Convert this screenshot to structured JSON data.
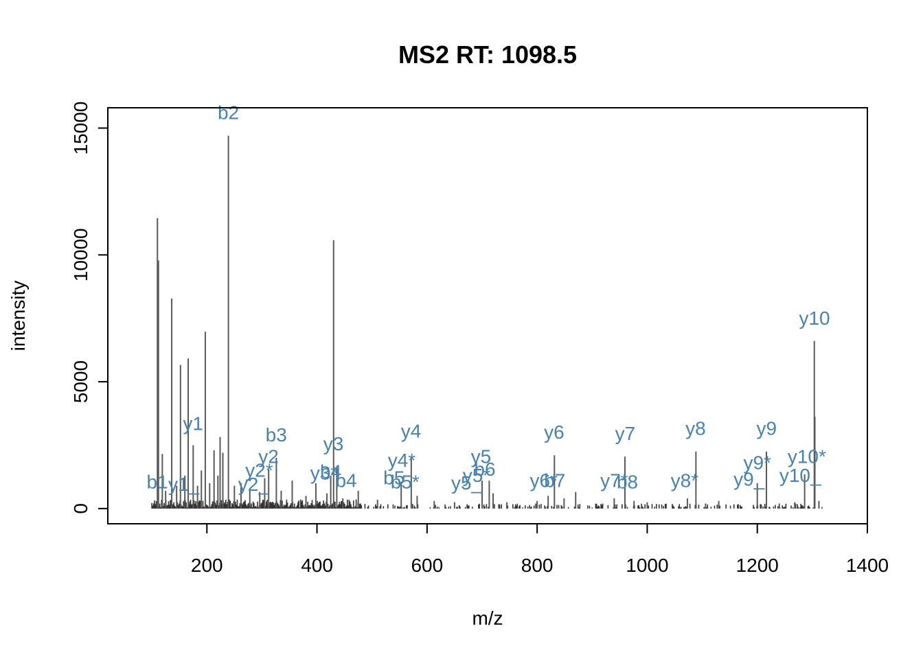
{
  "chart_data": {
    "type": "bar",
    "title": "MS2 RT: 1098.5",
    "xlabel": "m/z",
    "ylabel": "intensity",
    "xlim": [
      20,
      1400
    ],
    "ylim": [
      -600,
      15800
    ],
    "x_ticks": [
      200,
      400,
      600,
      800,
      1000,
      1200,
      1400
    ],
    "y_ticks": [
      0,
      5000,
      10000,
      15000
    ],
    "colors": {
      "peaks": "#595959",
      "labels": "#4682b4",
      "axis": "#000000"
    },
    "peaks": [
      {
        "mz": 110.1,
        "intensity": 11450
      },
      {
        "mz": 112.0,
        "intensity": 9780
      },
      {
        "mz": 119.0,
        "intensity": 2150
      },
      {
        "mz": 125.0,
        "intensity": 700
      },
      {
        "mz": 136.1,
        "intensity": 8280
      },
      {
        "mz": 145.0,
        "intensity": 900
      },
      {
        "mz": 152.0,
        "intensity": 5660
      },
      {
        "mz": 160.0,
        "intensity": 1300
      },
      {
        "mz": 166.0,
        "intensity": 5920
      },
      {
        "mz": 175.1,
        "intensity": 2500
      },
      {
        "mz": 183.0,
        "intensity": 900
      },
      {
        "mz": 190.0,
        "intensity": 1500
      },
      {
        "mz": 197.1,
        "intensity": 6970
      },
      {
        "mz": 205.0,
        "intensity": 1000
      },
      {
        "mz": 213.0,
        "intensity": 2300
      },
      {
        "mz": 220.0,
        "intensity": 1300
      },
      {
        "mz": 224.0,
        "intensity": 2820
      },
      {
        "mz": 229.0,
        "intensity": 2200
      },
      {
        "mz": 239.1,
        "intensity": 14700
      },
      {
        "mz": 250.0,
        "intensity": 900
      },
      {
        "mz": 262.0,
        "intensity": 1000
      },
      {
        "mz": 278.0,
        "intensity": 700
      },
      {
        "mz": 296.0,
        "intensity": 650
      },
      {
        "mz": 305.0,
        "intensity": 1200
      },
      {
        "mz": 312.2,
        "intensity": 1550
      },
      {
        "mz": 326.2,
        "intensity": 2000
      },
      {
        "mz": 335.0,
        "intensity": 700
      },
      {
        "mz": 355.0,
        "intensity": 1100
      },
      {
        "mz": 380.0,
        "intensity": 500
      },
      {
        "mz": 398.0,
        "intensity": 1000
      },
      {
        "mz": 418.0,
        "intensity": 600
      },
      {
        "mz": 425.0,
        "intensity": 1300
      },
      {
        "mz": 430.2,
        "intensity": 10580
      },
      {
        "mz": 436.0,
        "intensity": 1600
      },
      {
        "mz": 447.0,
        "intensity": 400
      },
      {
        "mz": 475.0,
        "intensity": 700
      },
      {
        "mz": 510.0,
        "intensity": 350
      },
      {
        "mz": 553.0,
        "intensity": 1050
      },
      {
        "mz": 571.3,
        "intensity": 2040
      },
      {
        "mz": 582.0,
        "intensity": 500
      },
      {
        "mz": 613.0,
        "intensity": 300
      },
      {
        "mz": 650.0,
        "intensity": 250
      },
      {
        "mz": 700.0,
        "intensity": 1100
      },
      {
        "mz": 713.0,
        "intensity": 1100
      },
      {
        "mz": 720.0,
        "intensity": 600
      },
      {
        "mz": 745.0,
        "intensity": 250
      },
      {
        "mz": 800.0,
        "intensity": 300
      },
      {
        "mz": 820.0,
        "intensity": 500
      },
      {
        "mz": 831.4,
        "intensity": 2100
      },
      {
        "mz": 849.0,
        "intensity": 400
      },
      {
        "mz": 870.0,
        "intensity": 650
      },
      {
        "mz": 940.0,
        "intensity": 400
      },
      {
        "mz": 959.5,
        "intensity": 2050
      },
      {
        "mz": 976.0,
        "intensity": 300
      },
      {
        "mz": 1000.0,
        "intensity": 250
      },
      {
        "mz": 1073.0,
        "intensity": 400
      },
      {
        "mz": 1088.5,
        "intensity": 2250
      },
      {
        "mz": 1106.0,
        "intensity": 200
      },
      {
        "mz": 1130.0,
        "intensity": 300
      },
      {
        "mz": 1200.0,
        "intensity": 1000
      },
      {
        "mz": 1216.6,
        "intensity": 2250
      },
      {
        "mz": 1240.0,
        "intensity": 200
      },
      {
        "mz": 1268.0,
        "intensity": 250
      },
      {
        "mz": 1286.0,
        "intensity": 1350
      },
      {
        "mz": 1303.6,
        "intensity": 6610
      },
      {
        "mz": 1304.6,
        "intensity": 3620
      },
      {
        "mz": 1312.0,
        "intensity": 300
      }
    ],
    "fragment_labels": [
      {
        "text": "b2",
        "mz": 239,
        "intensity": 15350
      },
      {
        "text": "y10",
        "mz": 1304,
        "intensity": 7250
      },
      {
        "text": "y1",
        "mz": 175,
        "intensity": 3100
      },
      {
        "text": "b3",
        "mz": 326,
        "intensity": 2650
      },
      {
        "text": "y3",
        "mz": 430,
        "intensity": 2300
      },
      {
        "text": "y4",
        "mz": 571,
        "intensity": 2800
      },
      {
        "text": "y6",
        "mz": 831,
        "intensity": 2750
      },
      {
        "text": "y7",
        "mz": 960,
        "intensity": 2700
      },
      {
        "text": "y8",
        "mz": 1088,
        "intensity": 2900
      },
      {
        "text": "y9",
        "mz": 1217,
        "intensity": 2900
      },
      {
        "text": "y2",
        "mz": 312,
        "intensity": 1800
      },
      {
        "text": "y2*",
        "mz": 295,
        "intensity": 1250
      },
      {
        "text": "y2_",
        "mz": 285,
        "intensity": 700
      },
      {
        "text": "b1",
        "mz": 110,
        "intensity": 800
      },
      {
        "text": "y1_",
        "mz": 158,
        "intensity": 700
      },
      {
        "text": "y3*",
        "mz": 413,
        "intensity": 1150
      },
      {
        "text": "b4",
        "mz": 425,
        "intensity": 1200
      },
      {
        "text": "b4",
        "mz": 453,
        "intensity": 850
      },
      {
        "text": "y4*",
        "mz": 554,
        "intensity": 1650
      },
      {
        "text": "b5",
        "mz": 540,
        "intensity": 950
      },
      {
        "text": "b5*",
        "mz": 560,
        "intensity": 800
      },
      {
        "text": "y5",
        "mz": 698,
        "intensity": 1800
      },
      {
        "text": "y5*",
        "mz": 690,
        "intensity": 1050
      },
      {
        "text": "b6",
        "mz": 705,
        "intensity": 1300
      },
      {
        "text": "y5_",
        "mz": 672,
        "intensity": 750
      },
      {
        "text": "y6*",
        "mz": 812,
        "intensity": 850
      },
      {
        "text": "b7",
        "mz": 832,
        "intensity": 850
      },
      {
        "text": "y7*",
        "mz": 940,
        "intensity": 850
      },
      {
        "text": "b8",
        "mz": 964,
        "intensity": 800
      },
      {
        "text": "y8*",
        "mz": 1068,
        "intensity": 850
      },
      {
        "text": "y9*",
        "mz": 1200,
        "intensity": 1550
      },
      {
        "text": "y9_",
        "mz": 1185,
        "intensity": 900
      },
      {
        "text": "y10*",
        "mz": 1290,
        "intensity": 1800
      },
      {
        "text": "y10_",
        "mz": 1278,
        "intensity": 1050
      }
    ]
  }
}
